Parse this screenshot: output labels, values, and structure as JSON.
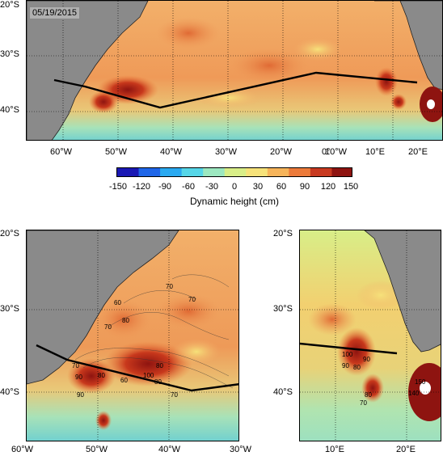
{
  "date_label": "05/19/2015",
  "colorbar": {
    "title": "Dynamic height (cm)",
    "ticks": [
      "-150",
      "-120",
      "-90",
      "-60",
      "-30",
      "0",
      "30",
      "60",
      "90",
      "120",
      "150"
    ],
    "colors": [
      "#1a18b4",
      "#1f66e8",
      "#2aa9f0",
      "#56d6e8",
      "#9ce8c0",
      "#d8ee88",
      "#f6e27a",
      "#f6b45a",
      "#ec7a3a",
      "#c83a20",
      "#8e1410"
    ]
  },
  "top_map": {
    "lat_labels": [
      "20°S",
      "30°S",
      "40°S"
    ],
    "lon_labels": [
      "60°W",
      "50°W",
      "40°W",
      "30°W",
      "20°W",
      "10°W",
      "0°",
      "10°E",
      "20°E"
    ]
  },
  "bottom_left_map": {
    "lat_labels": [
      "20°S",
      "30°S",
      "40°S"
    ],
    "lon_labels": [
      "60°W",
      "50°W",
      "40°W",
      "30°W"
    ],
    "contour_labels": [
      "70",
      "70",
      "60",
      "70",
      "80",
      "70",
      "80",
      "90",
      "100",
      "80",
      "60",
      "90",
      "80",
      "70"
    ]
  },
  "bottom_right_map": {
    "lat_labels": [
      "20°S",
      "30°S",
      "40°S"
    ],
    "lon_labels": [
      "10°E",
      "20°E"
    ],
    "contour_labels": [
      "100",
      "90",
      "80",
      "90",
      "80",
      "70",
      "140",
      "150"
    ]
  },
  "colors": {
    "land": "#8a8a8a",
    "field_warm": "#ee9a5e",
    "field_hot": "#c8381c",
    "field_cool": "#9ce0c0",
    "section_line": "#000000"
  }
}
